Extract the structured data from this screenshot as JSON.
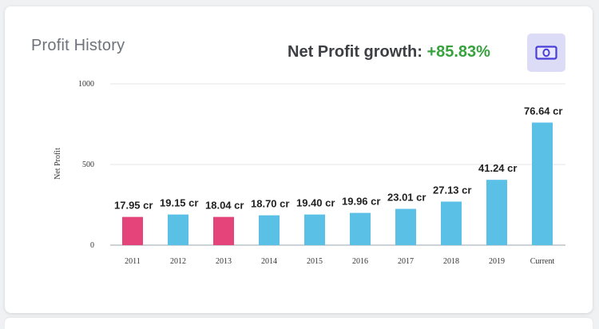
{
  "card": {
    "title": "Profit History",
    "growth_label": "Net Profit growth:",
    "growth_value": "+85.83%",
    "growth_color": "#37a23d",
    "icon": "money-bill-icon"
  },
  "chart_data": {
    "type": "bar",
    "categories": [
      "2011",
      "2012",
      "2013",
      "2014",
      "2015",
      "2016",
      "2017",
      "2018",
      "2019",
      "Current"
    ],
    "values": [
      175,
      190,
      175,
      185,
      190,
      200,
      225,
      270,
      405,
      760
    ],
    "labels": [
      "17.95 cr",
      "19.15 cr",
      "18.04 cr",
      "18.70 cr",
      "19.40 cr",
      "19.96 cr",
      "23.01 cr",
      "27.13 cr",
      "41.24 cr",
      "76.64 cr"
    ],
    "colors": [
      "#e5447a",
      "#5bc0e6",
      "#e5447a",
      "#5bc0e6",
      "#5bc0e6",
      "#5bc0e6",
      "#5bc0e6",
      "#5bc0e6",
      "#5bc0e6",
      "#5bc0e6"
    ],
    "ylabel": "Net Profit",
    "xlabel": "",
    "yticks": [
      0,
      500,
      1000
    ],
    "ylim": [
      0,
      1000
    ],
    "grid": true
  }
}
